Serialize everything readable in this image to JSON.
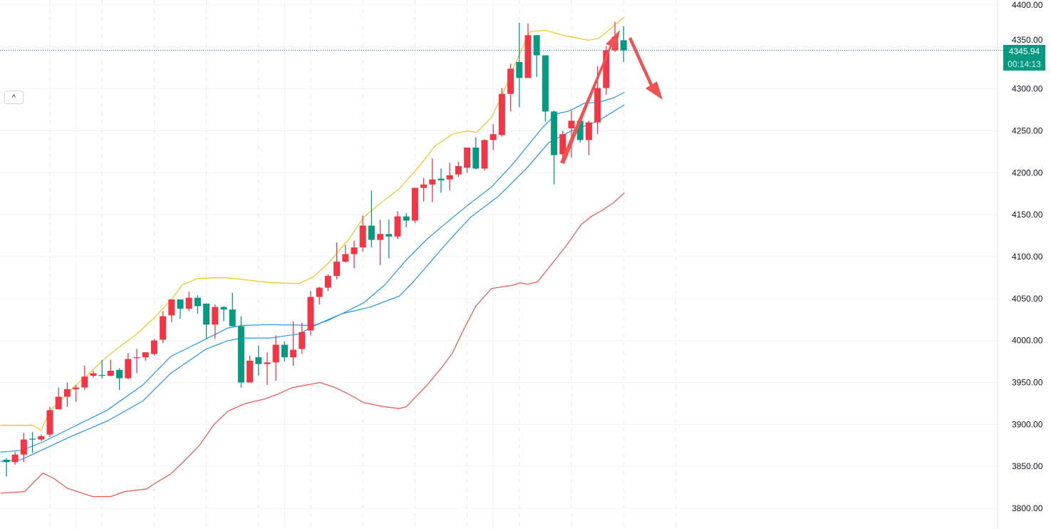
{
  "colors": {
    "up": "#f23645",
    "down": "#089981",
    "upper_band": "#f7c21b",
    "ma1": "#2196f3",
    "ma2": "#2196f3",
    "lower_band": "#f0524a",
    "annotation": "#f05252",
    "last_price_line": "#089981"
  },
  "controls": {
    "collapse_icon": "chevron-up-icon",
    "collapse_label": "^"
  },
  "last_price": {
    "value": "4345.94",
    "countdown": "00:14:13"
  },
  "chart_data": {
    "type": "candlestick",
    "title": "",
    "ylim": [
      3800,
      4400
    ],
    "y_ticks": [
      "4400.00",
      "4350.00",
      "4300.00",
      "4250.00",
      "4200.00",
      "4150.00",
      "4100.00",
      "4050.00",
      "4000.00",
      "3950.00",
      "3900.00",
      "3850.00",
      "3800.00"
    ],
    "y_tick_values": [
      4400,
      4350,
      4300,
      4250,
      4200,
      4150,
      4100,
      4050,
      4000,
      3950,
      3900,
      3850,
      3800
    ],
    "candles_ohlc": [
      [
        3858,
        3860,
        3838,
        3855
      ],
      [
        3855,
        3867,
        3852,
        3864
      ],
      [
        3864,
        3890,
        3855,
        3882
      ],
      [
        3883,
        3891,
        3866,
        3882
      ],
      [
        3882,
        3888,
        3880,
        3886
      ],
      [
        3888,
        3921,
        3885,
        3917
      ],
      [
        3918,
        3944,
        3918,
        3933
      ],
      [
        3933,
        3950,
        3921,
        3942
      ],
      [
        3942,
        3947,
        3927,
        3944
      ],
      [
        3944,
        3970,
        3941,
        3957
      ],
      [
        3958,
        3964,
        3956,
        3961
      ],
      [
        3959,
        3977,
        3955,
        3958
      ],
      [
        3958,
        3977,
        3957,
        3964
      ],
      [
        3965,
        3967,
        3941,
        3955
      ],
      [
        3955,
        3985,
        3954,
        3978
      ],
      [
        3979,
        3990,
        3961,
        3980
      ],
      [
        3980,
        3986,
        3976,
        3986
      ],
      [
        3984,
        4002,
        3982,
        4000
      ],
      [
        4001,
        4035,
        3997,
        4029
      ],
      [
        4030,
        4049,
        4022,
        4049
      ],
      [
        4049,
        4049,
        4026,
        4038
      ],
      [
        4038,
        4058,
        4035,
        4051
      ],
      [
        4051,
        4054,
        4032,
        4041
      ],
      [
        4044,
        4044,
        4002,
        4019
      ],
      [
        4019,
        4043,
        4002,
        4040
      ],
      [
        4040,
        4041,
        4023,
        4037
      ],
      [
        4037,
        4057,
        4017,
        4017
      ],
      [
        4017,
        4029,
        3944,
        3950
      ],
      [
        3950,
        3982,
        3950,
        3976
      ],
      [
        3980,
        3994,
        3958,
        3972
      ],
      [
        3972,
        3986,
        3947,
        3974
      ],
      [
        3974,
        4006,
        3952,
        3995
      ],
      [
        3995,
        3999,
        3975,
        3980
      ],
      [
        3980,
        4023,
        3970,
        3989
      ],
      [
        3990,
        4021,
        3984,
        4010
      ],
      [
        4012,
        4059,
        4006,
        4052
      ],
      [
        4052,
        4064,
        4043,
        4063
      ],
      [
        4063,
        4079,
        4059,
        4077
      ],
      [
        4077,
        4117,
        4073,
        4094
      ],
      [
        4094,
        4114,
        4093,
        4103
      ],
      [
        4103,
        4119,
        4086,
        4111
      ],
      [
        4111,
        4149,
        4106,
        4137
      ],
      [
        4137,
        4179,
        4111,
        4120
      ],
      [
        4120,
        4144,
        4090,
        4127
      ],
      [
        4127,
        4144,
        4098,
        4124
      ],
      [
        4124,
        4154,
        4121,
        4148
      ],
      [
        4148,
        4152,
        4135,
        4143
      ],
      [
        4143,
        4182,
        4140,
        4182
      ],
      [
        4182,
        4194,
        4166,
        4186
      ],
      [
        4186,
        4217,
        4165,
        4192
      ],
      [
        4193,
        4205,
        4176,
        4191
      ],
      [
        4192,
        4212,
        4179,
        4197
      ],
      [
        4198,
        4213,
        4195,
        4208
      ],
      [
        4206,
        4230,
        4200,
        4230
      ],
      [
        4230,
        4242,
        4204,
        4205
      ],
      [
        4205,
        4240,
        4203,
        4239
      ],
      [
        4239,
        4258,
        4227,
        4246
      ],
      [
        4245,
        4301,
        4243,
        4294
      ],
      [
        4294,
        4330,
        4273,
        4324
      ],
      [
        4332,
        4379,
        4278,
        4313
      ],
      [
        4313,
        4378,
        4313,
        4364
      ],
      [
        4364,
        4364,
        4314,
        4340
      ],
      [
        4340,
        4340,
        4261,
        4273
      ],
      [
        4273,
        4274,
        4186,
        4221
      ],
      [
        4222,
        4250,
        4212,
        4246
      ],
      [
        4253,
        4274,
        4218,
        4262
      ],
      [
        4262,
        4262,
        4236,
        4239
      ],
      [
        4239,
        4262,
        4221,
        4260
      ],
      [
        4260,
        4327,
        4246,
        4301
      ],
      [
        4301,
        4351,
        4293,
        4346
      ],
      [
        4346,
        4380,
        4344,
        4362
      ],
      [
        4358,
        4375,
        4332,
        4345.94
      ]
    ],
    "series": [
      {
        "name": "upper_band",
        "color_key": "upper_band",
        "points": [
          [
            -0.7,
            3899
          ],
          [
            3,
            3899
          ],
          [
            4,
            3893
          ],
          [
            5,
            3916
          ],
          [
            7.5,
            3942
          ],
          [
            9.1,
            3957
          ],
          [
            11.6,
            3981
          ],
          [
            13.2,
            3994
          ],
          [
            14.8,
            4006
          ],
          [
            16.9,
            4026
          ],
          [
            19,
            4049
          ],
          [
            20.2,
            4066
          ],
          [
            22,
            4074
          ],
          [
            25,
            4075
          ],
          [
            27.1,
            4073
          ],
          [
            30.4,
            4069
          ],
          [
            33.7,
            4068
          ],
          [
            35.3,
            4076
          ],
          [
            37,
            4092
          ],
          [
            39.4,
            4121
          ],
          [
            41.1,
            4147
          ],
          [
            42.7,
            4161
          ],
          [
            45.2,
            4181
          ],
          [
            47.6,
            4209
          ],
          [
            49.3,
            4232
          ],
          [
            51.3,
            4246
          ],
          [
            53.1,
            4250
          ],
          [
            54.1,
            4248
          ],
          [
            55.8,
            4266
          ],
          [
            57.1,
            4294
          ],
          [
            58.3,
            4325
          ],
          [
            60.2,
            4368
          ],
          [
            62,
            4370
          ],
          [
            64,
            4364
          ],
          [
            66.9,
            4358
          ],
          [
            68.1,
            4360
          ],
          [
            69.3,
            4370
          ],
          [
            71.1,
            4386
          ]
        ]
      },
      {
        "name": "ma1",
        "color_key": "ma1",
        "points": [
          [
            -0.7,
            3867
          ],
          [
            1.7,
            3869
          ],
          [
            4.2,
            3879
          ],
          [
            7.5,
            3896
          ],
          [
            11.6,
            3917
          ],
          [
            15.7,
            3947
          ],
          [
            18.9,
            3981
          ],
          [
            23,
            4002
          ],
          [
            25.5,
            4015
          ],
          [
            27.1,
            4018
          ],
          [
            30.4,
            4019
          ],
          [
            35.3,
            4018
          ],
          [
            37,
            4024
          ],
          [
            38.6,
            4032
          ],
          [
            41.1,
            4045
          ],
          [
            43.5,
            4066
          ],
          [
            46,
            4096
          ],
          [
            48.4,
            4121
          ],
          [
            50.9,
            4143
          ],
          [
            53.4,
            4164
          ],
          [
            55.8,
            4183
          ],
          [
            58.3,
            4211
          ],
          [
            61.6,
            4253
          ],
          [
            63.2,
            4270
          ],
          [
            64.8,
            4274
          ],
          [
            66.5,
            4283
          ],
          [
            68.1,
            4284
          ],
          [
            69.8,
            4289
          ],
          [
            71.1,
            4296
          ]
        ]
      },
      {
        "name": "ma2",
        "color_key": "ma2",
        "points": [
          [
            -0.7,
            3856
          ],
          [
            1.7,
            3858
          ],
          [
            4.2,
            3870
          ],
          [
            7.5,
            3886
          ],
          [
            11.6,
            3904
          ],
          [
            15.7,
            3928
          ],
          [
            18.9,
            3961
          ],
          [
            23,
            3990
          ],
          [
            25.5,
            4000
          ],
          [
            27.1,
            4003
          ],
          [
            30.4,
            4003
          ],
          [
            33.7,
            4008
          ],
          [
            35.3,
            4017
          ],
          [
            37,
            4025
          ],
          [
            38.6,
            4032
          ],
          [
            41.9,
            4040
          ],
          [
            45.2,
            4053
          ],
          [
            46.8,
            4070
          ],
          [
            49.3,
            4100
          ],
          [
            50.9,
            4119
          ],
          [
            53.4,
            4147
          ],
          [
            56.6,
            4172
          ],
          [
            59.9,
            4206
          ],
          [
            62.4,
            4236
          ],
          [
            64.8,
            4249
          ],
          [
            68.1,
            4262
          ],
          [
            71.1,
            4281
          ]
        ]
      },
      {
        "name": "lower_band",
        "color_key": "lower_band",
        "points": [
          [
            -0.7,
            3818
          ],
          [
            2.1,
            3820
          ],
          [
            4.2,
            3842
          ],
          [
            5.4,
            3836
          ],
          [
            7,
            3824
          ],
          [
            9.9,
            3814
          ],
          [
            12,
            3814
          ],
          [
            13.6,
            3820
          ],
          [
            16.1,
            3823
          ],
          [
            17.3,
            3831
          ],
          [
            18.9,
            3841
          ],
          [
            20.6,
            3858
          ],
          [
            22.2,
            3875
          ],
          [
            23.9,
            3900
          ],
          [
            25.5,
            3916
          ],
          [
            27.5,
            3925
          ],
          [
            29.6,
            3930
          ],
          [
            31.2,
            3936
          ],
          [
            32.9,
            3944
          ],
          [
            36.1,
            3950
          ],
          [
            37.8,
            3944
          ],
          [
            39.4,
            3936
          ],
          [
            41.1,
            3926
          ],
          [
            43.5,
            3921
          ],
          [
            45.2,
            3919
          ],
          [
            46,
            3921
          ],
          [
            48.4,
            3947
          ],
          [
            50.1,
            3968
          ],
          [
            51.3,
            3985
          ],
          [
            52.5,
            4011
          ],
          [
            54,
            4041
          ],
          [
            55.8,
            4062
          ],
          [
            58.3,
            4066
          ],
          [
            59.1,
            4069
          ],
          [
            59.9,
            4067
          ],
          [
            61.1,
            4070
          ],
          [
            62.8,
            4092
          ],
          [
            64.4,
            4113
          ],
          [
            66.1,
            4138
          ],
          [
            67.3,
            4148
          ],
          [
            68.5,
            4155
          ],
          [
            69.8,
            4164
          ],
          [
            71.1,
            4176
          ]
        ]
      }
    ],
    "annotations": [
      "arrow-up",
      "arrow-down"
    ],
    "grid": true
  }
}
